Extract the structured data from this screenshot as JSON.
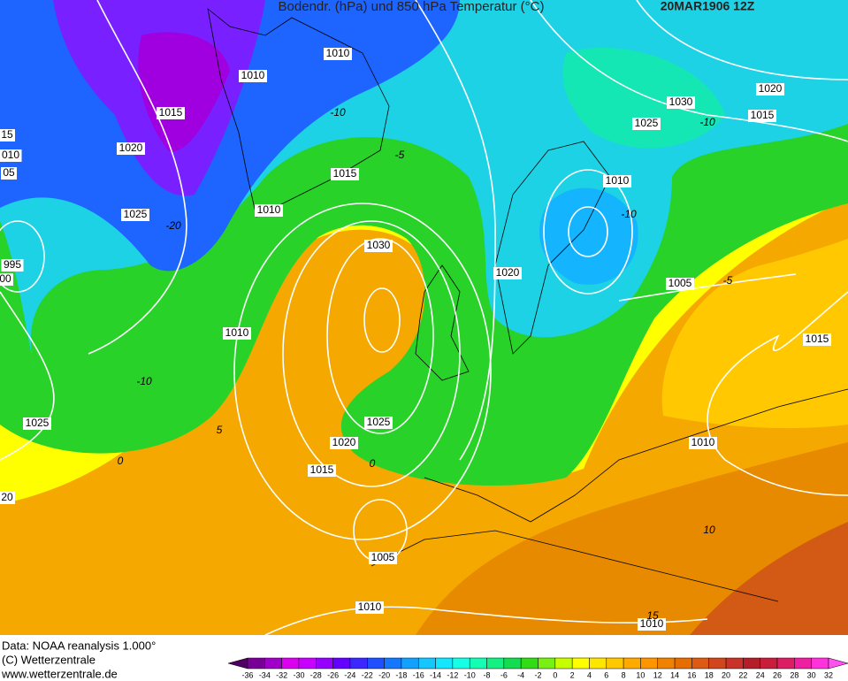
{
  "header": {
    "title": "Bodendr. (hPa) und 850 hPa Temperatur (°C)",
    "date": "20MAR1906 12Z"
  },
  "isobar_labels": [
    "1010",
    "1010",
    "1015",
    "15",
    "010",
    "05",
    "1020",
    "1025",
    "1015",
    "1010",
    "1030",
    "995",
    "00",
    "1010",
    "1025",
    "20",
    "1025",
    "1020",
    "1015",
    "1005",
    "1010",
    "1010",
    "1010",
    "1015",
    "1005",
    "1020",
    "1010",
    "1025",
    "1030",
    "1020",
    "1015"
  ],
  "temperature_labels": [
    "-10",
    "-10",
    "-10",
    "-10",
    "-5",
    "-20",
    "-5",
    "0",
    "0",
    "5",
    "10",
    "15"
  ],
  "footer": {
    "data": "Data: NOAA reanalysis 1.000°",
    "copyright": "(C) Wetterzentrale",
    "url": "www.wetterzentrale.de"
  },
  "legend": {
    "labels": [
      "-36",
      "-34",
      "-32",
      "-30",
      "-28",
      "-26",
      "-24",
      "-22",
      "-20",
      "-18",
      "-16",
      "-14",
      "-12",
      "-10",
      "-8",
      "-6",
      "-4",
      "-2",
      "0",
      "2",
      "4",
      "6",
      "8",
      "10",
      "12",
      "14",
      "16",
      "18",
      "20",
      "22",
      "24",
      "26",
      "28",
      "30",
      "32"
    ],
    "colors": [
      "#500064",
      "#780096",
      "#a000c8",
      "#dc00f0",
      "#c800ff",
      "#9600ff",
      "#6400ff",
      "#3c28ff",
      "#1e50ff",
      "#1478ff",
      "#14a0ff",
      "#14c8ff",
      "#14e6ff",
      "#14ffe6",
      "#14ffb4",
      "#14f082",
      "#14dc50",
      "#32dc14",
      "#78f014",
      "#c8ff00",
      "#ffff00",
      "#ffe600",
      "#ffc800",
      "#ffaa00",
      "#ff9600",
      "#f08200",
      "#e66e00",
      "#dc5a14",
      "#d2461e",
      "#c83228",
      "#b41e28",
      "#c81e3c",
      "#dc1e64",
      "#f01ea0",
      "#ff32dc",
      "#ff50f0"
    ]
  }
}
